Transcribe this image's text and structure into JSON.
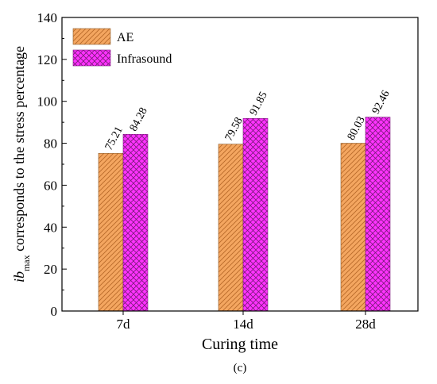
{
  "chart_data": {
    "type": "bar",
    "categories": [
      "7d",
      "14d",
      "28d"
    ],
    "series": [
      {
        "name": "AE",
        "values": [
          75.21,
          79.58,
          80.03
        ],
        "color": "#f4a660",
        "hatch": "diagonal"
      },
      {
        "name": "Infrasound",
        "values": [
          84.28,
          91.85,
          92.46
        ],
        "color": "#ff33ff",
        "hatch": "cross"
      }
    ],
    "data_labels": [
      [
        "75.21",
        "79.58",
        "80.03"
      ],
      [
        "84.28",
        "91.85",
        "92.46"
      ]
    ],
    "xlabel": "Curing time",
    "ylabel_main": "ib",
    "ylabel_sub": "max",
    "ylabel_rest": " corresponds to the stress percentage",
    "ylim": [
      0,
      140
    ],
    "yticks": [
      "0",
      "20",
      "40",
      "60",
      "80",
      "100",
      "120",
      "140"
    ],
    "grid": false,
    "legend_position": "top-left",
    "caption": "(c)"
  }
}
